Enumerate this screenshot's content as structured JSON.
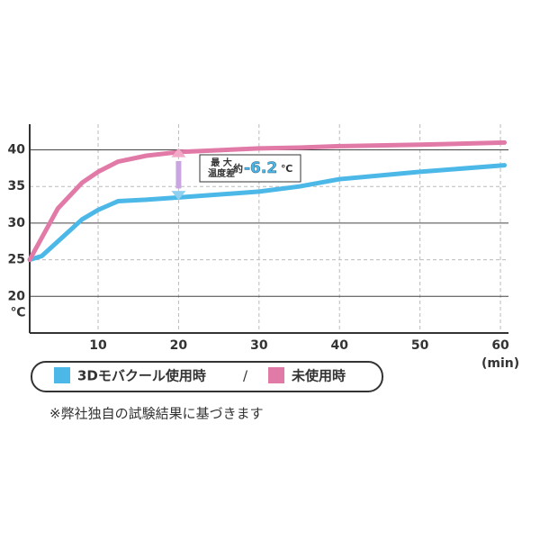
{
  "chart_data": {
    "type": "line",
    "x_label": "(min)",
    "y_label": "℃",
    "x": [
      1.5,
      3,
      5,
      8,
      10,
      12.5,
      16,
      20,
      30,
      35,
      40,
      50,
      60.5
    ],
    "series": [
      {
        "name": "3Dモバクール使用時",
        "color": "#4bb8e8",
        "values": [
          25,
          25.5,
          27.5,
          30.5,
          31.8,
          33,
          33.2,
          33.5,
          34.3,
          35,
          36,
          37,
          37.9
        ]
      },
      {
        "name": "未使用時",
        "color": "#e27aa8",
        "values": [
          25,
          28,
          32,
          35.5,
          37,
          38.4,
          39.2,
          39.7,
          40.2,
          40.3,
          40.5,
          40.7,
          41
        ]
      }
    ],
    "xlim": [
      1.5,
      61
    ],
    "ylim": [
      15,
      43.5
    ],
    "xticks": [
      10,
      20,
      30,
      40,
      50,
      60
    ],
    "yticks": [
      20,
      25,
      30,
      35,
      40
    ],
    "grid": true,
    "legend_separator": "/",
    "annotation": {
      "lines": [
        "最 大",
        "温度差"
      ],
      "prefix": "約",
      "value": "-6.2",
      "unit": "℃"
    },
    "footnote": "※弊社独自の試験結果に基づきます"
  }
}
